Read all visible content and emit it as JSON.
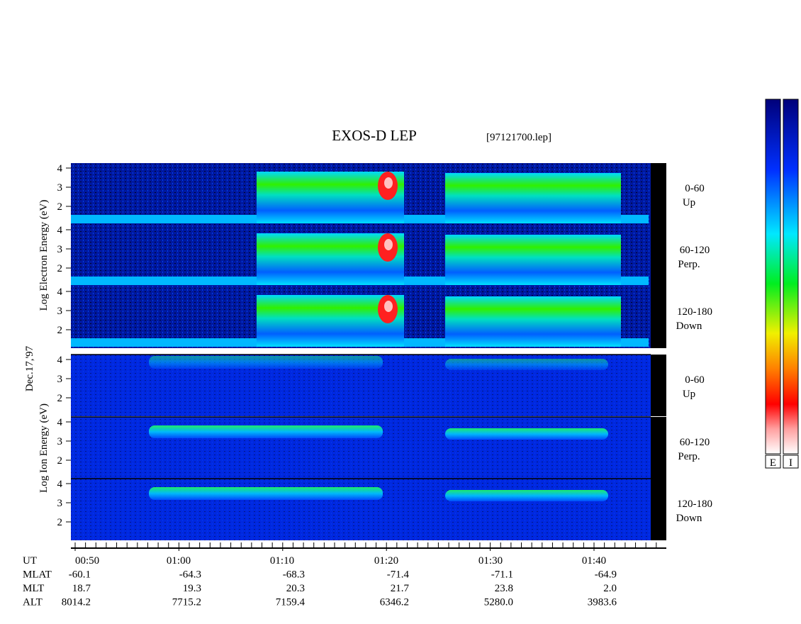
{
  "header": {
    "title": "EXOS-D LEP",
    "file": "[97121700.lep]"
  },
  "date": "Dec.17,'97",
  "electron": {
    "axis_label": "Log Electron Energy (eV)",
    "panels": [
      {
        "yticks": [
          "4",
          "3",
          "2"
        ],
        "label": "0-60",
        "sublabel": "Up"
      },
      {
        "yticks": [
          "4",
          "3",
          "2"
        ],
        "label": "60-120",
        "sublabel": "Perp."
      },
      {
        "yticks": [
          "4",
          "3",
          "2"
        ],
        "label": "120-180",
        "sublabel": "Down"
      }
    ]
  },
  "ion": {
    "axis_label": "Log Ion Energy (eV)",
    "panels": [
      {
        "yticks": [
          "4",
          "3",
          "2"
        ],
        "label": "0-60",
        "sublabel": "Up"
      },
      {
        "yticks": [
          "4",
          "3",
          "2"
        ],
        "label": "60-120",
        "sublabel": "Perp."
      },
      {
        "yticks": [
          "4",
          "3",
          "2"
        ],
        "label": "120-180",
        "sublabel": "Down"
      }
    ]
  },
  "rows": [
    {
      "label": "UT",
      "values": [
        "00:50",
        "01:00",
        "01:10",
        "01:20",
        "01:30",
        "01:40"
      ]
    },
    {
      "label": "MLAT",
      "values": [
        "-60.1",
        "-64.3",
        "-68.3",
        "-71.4",
        "-71.1",
        "-64.9"
      ]
    },
    {
      "label": "MLT",
      "values": [
        "18.7",
        "19.3",
        "20.3",
        "21.7",
        "23.8",
        "2.0"
      ]
    },
    {
      "label": "ALT",
      "values": [
        "8014.2",
        "7715.2",
        "7159.4",
        "6346.2",
        "5280.0",
        "3983.6"
      ]
    }
  ],
  "colorbars": [
    "E",
    "I"
  ]
}
